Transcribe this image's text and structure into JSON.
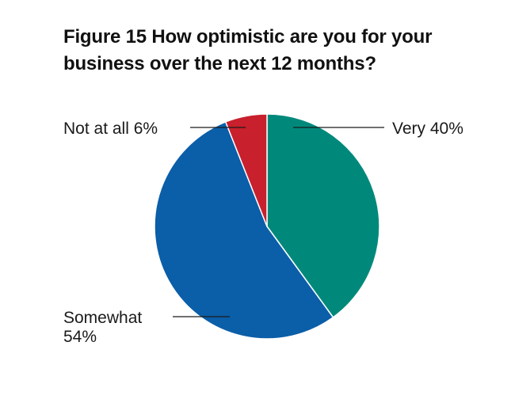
{
  "title_lines": [
    "Figure 15 How optimistic are you for your",
    "business over the next 12 months?"
  ],
  "chart_data": {
    "type": "pie",
    "title": "Figure 15 How optimistic are you for your business over the next 12 months?",
    "unit": "%",
    "slices": [
      {
        "label": "Very",
        "value": 40,
        "color": "#00897b",
        "display_lines": [
          "Very 40%"
        ]
      },
      {
        "label": "Somewhat",
        "value": 54,
        "color": "#0b5ea8",
        "display_lines": [
          "Somewhat",
          "54%"
        ]
      },
      {
        "label": "Not at all",
        "value": 6,
        "color": "#c8202c",
        "display_lines": [
          "Not at all 6%"
        ]
      }
    ]
  }
}
